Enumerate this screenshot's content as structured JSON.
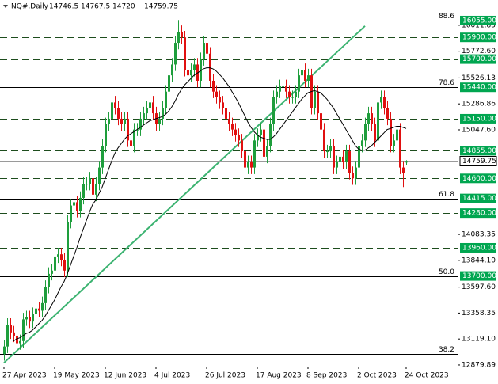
{
  "chart_data": {
    "type": "candlestick",
    "symbol": "NQ#,Daily",
    "categories": [
      "27 Apr 2023",
      null,
      null,
      null,
      null,
      null,
      null,
      null,
      null,
      null,
      null,
      null,
      null,
      null,
      null,
      null,
      "19 May 2023",
      null,
      null,
      null,
      null,
      null,
      null,
      null,
      null,
      null,
      null,
      null,
      null,
      null,
      null,
      null,
      "12 Jun 2023",
      null,
      null,
      null,
      null,
      null,
      null,
      null,
      null,
      null,
      null,
      null,
      null,
      null,
      null,
      null,
      "4 Jul 2023",
      null,
      null,
      null,
      null,
      null,
      null,
      null,
      null,
      null,
      null,
      null,
      null,
      null,
      null,
      null,
      "26 Jul 2023",
      null,
      null,
      null,
      null,
      null,
      null,
      null,
      null,
      null,
      null,
      null,
      null,
      null,
      null,
      null,
      "17 Aug 2023",
      null,
      null,
      null,
      null,
      null,
      null,
      null,
      null,
      null,
      null,
      null,
      null,
      null,
      null,
      null,
      "8 Sep 2023",
      null,
      null,
      null,
      null,
      null,
      null,
      null,
      null,
      null,
      null,
      null,
      null,
      null,
      null,
      null,
      "2 Oct 2023",
      null,
      null,
      null,
      null,
      null,
      null,
      null,
      null,
      null,
      null,
      null,
      null,
      null,
      null,
      "24 Oct 2023"
    ],
    "open": [
      12980,
      13050,
      13250,
      13180,
      13150,
      13080,
      13100,
      13300,
      13320,
      13280,
      13350,
      13400,
      13380,
      13450,
      13600,
      13720,
      13750,
      13880,
      13900,
      13850,
      13750,
      14200,
      14350,
      14380,
      14300,
      14420,
      14550,
      14550,
      14600,
      14450,
      14550,
      14700,
      14900,
      15100,
      15150,
      15300,
      15250,
      15150,
      15100,
      15150,
      14950,
      14900,
      15050,
      15050,
      15150,
      15200,
      15250,
      15300,
      15200,
      15100,
      15150,
      15250,
      15400,
      15550,
      15650,
      15850,
      15950,
      15900,
      15600,
      15550,
      15600,
      15650,
      15500,
      15700,
      15850,
      15750,
      15500,
      15400,
      15350,
      15300,
      15250,
      15150,
      15100,
      15050,
      15000,
      14950,
      14850,
      14700,
      14750,
      14700,
      14950,
      15000,
      15050,
      14800,
      14900,
      15100,
      15350,
      15400,
      15450,
      15450,
      15400,
      15350,
      15350,
      15400,
      15550,
      15600,
      15500,
      15550,
      15250,
      15400,
      15200,
      15050,
      14850,
      14850,
      14900,
      14700,
      14750,
      14800,
      14750,
      14850,
      14650,
      14600,
      14700,
      14900,
      14950,
      15100,
      15200,
      15100,
      14950,
      15300,
      15350,
      15250,
      15150,
      14900,
      14950,
      15050,
      14700,
      14746.5
    ],
    "high": [
      13110,
      13310,
      13310,
      13240,
      13210,
      13160,
      13360,
      13380,
      13380,
      13410,
      13460,
      13460,
      13510,
      13660,
      13780,
      13810,
      13940,
      13960,
      13960,
      13910,
      14260,
      14410,
      14440,
      14440,
      14480,
      14610,
      14610,
      14660,
      14660,
      14610,
      14760,
      14960,
      15160,
      15210,
      15360,
      15360,
      15310,
      15210,
      15210,
      15210,
      15010,
      15110,
      15110,
      15210,
      15260,
      15310,
      15360,
      15360,
      15260,
      15210,
      15310,
      15460,
      15610,
      15710,
      15910,
      16060,
      16010,
      15960,
      15660,
      15660,
      15710,
      15710,
      15760,
      15910,
      15910,
      15810,
      15560,
      15460,
      15410,
      15360,
      15310,
      15210,
      15160,
      15110,
      15060,
      15010,
      14910,
      14810,
      14810,
      15010,
      15060,
      15110,
      15110,
      14960,
      15160,
      15410,
      15460,
      15510,
      15510,
      15510,
      15460,
      15410,
      15460,
      15610,
      15660,
      15660,
      15610,
      15610,
      15460,
      15460,
      15260,
      15110,
      14910,
      14960,
      14960,
      14810,
      14860,
      14860,
      14910,
      14910,
      14710,
      14760,
      14960,
      15010,
      15160,
      15260,
      15260,
      15160,
      15360,
      15410,
      15410,
      15310,
      15210,
      15010,
      15110,
      15110,
      14760,
      14767.5
    ],
    "low": [
      12920,
      12990,
      13120,
      13090,
      13020,
      13020,
      13040,
      13240,
      13220,
      13220,
      13290,
      13320,
      13320,
      13390,
      13540,
      13660,
      13690,
      13820,
      13790,
      13690,
      13690,
      14140,
      14290,
      14240,
      14240,
      14360,
      14490,
      14490,
      14390,
      14390,
      14490,
      14640,
      14840,
      15040,
      15090,
      15190,
      15090,
      15040,
      15040,
      14890,
      14840,
      14840,
      14990,
      14990,
      15090,
      15140,
      15190,
      15140,
      15040,
      15040,
      15090,
      15190,
      15340,
      15490,
      15590,
      15790,
      15840,
      15540,
      15490,
      15490,
      15540,
      15440,
      15440,
      15640,
      15690,
      15440,
      15340,
      15290,
      15240,
      15190,
      15090,
      15040,
      14990,
      14940,
      14890,
      14790,
      14640,
      14640,
      14640,
      14640,
      14890,
      14940,
      14740,
      14740,
      14840,
      15040,
      15290,
      15340,
      15390,
      15340,
      15290,
      15290,
      15290,
      15340,
      15490,
      15440,
      15440,
      15190,
      15190,
      15140,
      14990,
      14790,
      14790,
      14790,
      14640,
      14640,
      14690,
      14690,
      14690,
      14590,
      14540,
      14540,
      14640,
      14840,
      14890,
      15040,
      15040,
      14890,
      14890,
      15240,
      15190,
      15090,
      14840,
      14840,
      14890,
      14640,
      14520,
      14720
    ],
    "close": [
      13050,
      13250,
      13180,
      13150,
      13080,
      13100,
      13300,
      13320,
      13280,
      13350,
      13400,
      13380,
      13450,
      13600,
      13720,
      13750,
      13880,
      13900,
      13850,
      13750,
      14200,
      14350,
      14380,
      14300,
      14420,
      14550,
      14550,
      14600,
      14450,
      14550,
      14700,
      14900,
      15100,
      15150,
      15300,
      15250,
      15150,
      15100,
      15150,
      14950,
      14900,
      15050,
      15050,
      15150,
      15200,
      15250,
      15300,
      15200,
      15100,
      15150,
      15250,
      15400,
      15550,
      15650,
      15850,
      15950,
      15900,
      15600,
      15550,
      15600,
      15650,
      15500,
      15700,
      15850,
      15750,
      15500,
      15400,
      15350,
      15300,
      15250,
      15150,
      15100,
      15050,
      15000,
      14950,
      14850,
      14700,
      14750,
      14700,
      14950,
      15000,
      15050,
      14800,
      14900,
      15100,
      15350,
      15400,
      15450,
      15450,
      15400,
      15350,
      15350,
      15400,
      15550,
      15600,
      15500,
      15550,
      15250,
      15400,
      15200,
      15050,
      14850,
      14850,
      14900,
      14700,
      14750,
      14800,
      14750,
      14850,
      14650,
      14600,
      14700,
      14900,
      14950,
      15100,
      15200,
      15100,
      14950,
      15300,
      15350,
      15250,
      15150,
      14900,
      14950,
      15050,
      14700,
      14650,
      14759.75
    ],
    "ma": [
      null,
      null,
      null,
      13100,
      13120,
      13130,
      13150,
      13170,
      13180,
      13200,
      13230,
      13260,
      13290,
      13330,
      13380,
      13430,
      13480,
      13540,
      13600,
      13650,
      13720,
      13800,
      13880,
      13960,
      14050,
      14130,
      14210,
      14290,
      14360,
      14400,
      14460,
      14520,
      14600,
      14680,
      14760,
      14830,
      14880,
      14920,
      14960,
      14990,
      15010,
      15030,
      15050,
      15070,
      15090,
      15110,
      15130,
      15140,
      15150,
      15160,
      15170,
      15190,
      15220,
      15260,
      15310,
      15370,
      15420,
      15460,
      15490,
      15520,
      15550,
      15570,
      15590,
      15610,
      15620,
      15620,
      15610,
      15590,
      15560,
      15530,
      15490,
      15450,
      15400,
      15350,
      15300,
      15240,
      15180,
      15120,
      15070,
      15030,
      15000,
      14980,
      14970,
      14960,
      14960,
      14980,
      15010,
      15050,
      15090,
      15130,
      15170,
      15210,
      15250,
      15290,
      15330,
      15360,
      15390,
      15400,
      15410,
      15400,
      15390,
      15360,
      15330,
      15290,
      15250,
      15200,
      15150,
      15100,
      15050,
      15000,
      14950,
      14900,
      14870,
      14860,
      14860,
      14880,
      14900,
      14930,
      14960,
      14990,
      15020,
      15050,
      15060,
      15070,
      15080,
      15080,
      15070,
      15060
    ],
    "up_color": "#1e9e3c",
    "down_color": "#e01010",
    "ma_color": "#000000",
    "trendline": {
      "x": [
        0,
        114
      ],
      "y": [
        12900,
        16005
      ],
      "color": "#3cb371"
    },
    "levels": [
      {
        "value": 16055,
        "label": "16055.00",
        "style": "solid",
        "fib": "88.6"
      },
      {
        "value": 15900,
        "label": "15900.00",
        "style": "dashed"
      },
      {
        "value": 15700,
        "label": "15700.00",
        "style": "dashed"
      },
      {
        "value": 15440,
        "label": "15440.00",
        "style": "solid",
        "fib": "78.6"
      },
      {
        "value": 15150,
        "label": "15150.00",
        "style": "dashed"
      },
      {
        "value": 14855,
        "label": "14855.00",
        "style": "dashed"
      },
      {
        "value": 14600,
        "label": "14600.00",
        "style": "dashed"
      },
      {
        "value": 14415,
        "label": "14415.00",
        "style": "solid",
        "fib": "61.8"
      },
      {
        "value": 14280,
        "label": "14280.00",
        "style": "dashed"
      },
      {
        "value": 13960,
        "label": "13960.00",
        "style": "dashed"
      },
      {
        "value": 13700,
        "label": "13700.00",
        "style": "solid",
        "fib": "50.0"
      },
      {
        "value": 12985,
        "style": "solid",
        "fib": "38.2"
      }
    ],
    "level_color": "#00a650",
    "ylim": [
      12865,
      16135
    ],
    "yticks": [
      16011.85,
      {
        "value": 15772.6,
        "label": "15772.60"
      },
      15526.13,
      15286.86,
      {
        "value": 15047.6,
        "label": "15047.60"
      },
      14083.35,
      {
        "value": 13844.1,
        "label": "13844.10"
      },
      {
        "value": 13597.6,
        "label": "13597.60"
      },
      13358.35,
      {
        "value": 13119.1,
        "label": "13119.10"
      },
      12879.89
    ]
  }
}
